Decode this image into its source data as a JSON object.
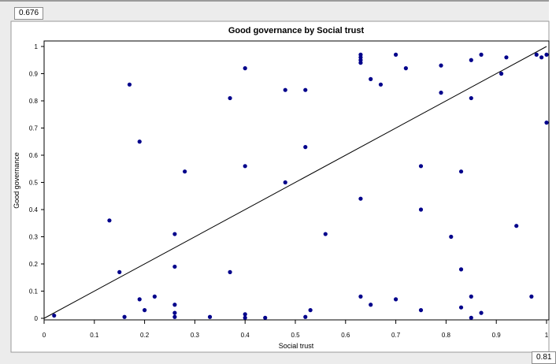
{
  "corner_values": {
    "top_left": "0.676",
    "bottom_right": "0.81"
  },
  "chart_data": {
    "type": "scatter",
    "title": "Good governance by Social trust",
    "xlabel": "Social trust",
    "ylabel": "Good governance",
    "xlim": [
      0,
      1
    ],
    "ylim": [
      0,
      1
    ],
    "x_ticks": [
      "0",
      "0.1",
      "0.2",
      "0.3",
      "0.4",
      "0.5",
      "0.6",
      "0.7",
      "0.8",
      "0.9",
      "1"
    ],
    "y_ticks": [
      "0",
      "0.1",
      "0.2",
      "0.3",
      "0.4",
      "0.5",
      "0.6",
      "0.7",
      "0.8",
      "0.9",
      "1"
    ],
    "grid": false,
    "series": [
      {
        "points": [
          [
            0.02,
            0.01
          ],
          [
            0.13,
            0.36
          ],
          [
            0.15,
            0.17
          ],
          [
            0.16,
            0.005
          ],
          [
            0.17,
            0.86
          ],
          [
            0.19,
            0.65
          ],
          [
            0.19,
            0.07
          ],
          [
            0.2,
            0.03
          ],
          [
            0.22,
            0.08
          ],
          [
            0.26,
            0.31
          ],
          [
            0.26,
            0.19
          ],
          [
            0.26,
            0.05
          ],
          [
            0.26,
            0.02
          ],
          [
            0.26,
            0.005
          ],
          [
            0.28,
            0.54
          ],
          [
            0.33,
            0.005
          ],
          [
            0.37,
            0.81
          ],
          [
            0.37,
            0.17
          ],
          [
            0.4,
            0.92
          ],
          [
            0.4,
            0.56
          ],
          [
            0.4,
            0.015
          ],
          [
            0.4,
            0.002
          ],
          [
            0.44,
            0.002
          ],
          [
            0.48,
            0.84
          ],
          [
            0.48,
            0.5
          ],
          [
            0.52,
            0.84
          ],
          [
            0.52,
            0.63
          ],
          [
            0.52,
            0.005
          ],
          [
            0.53,
            0.03
          ],
          [
            0.56,
            0.31
          ],
          [
            0.63,
            0.97
          ],
          [
            0.63,
            0.96
          ],
          [
            0.63,
            0.95
          ],
          [
            0.63,
            0.94
          ],
          [
            0.63,
            0.44
          ],
          [
            0.63,
            0.08
          ],
          [
            0.65,
            0.88
          ],
          [
            0.65,
            0.05
          ],
          [
            0.67,
            0.86
          ],
          [
            0.7,
            0.97
          ],
          [
            0.7,
            0.07
          ],
          [
            0.72,
            0.92
          ],
          [
            0.75,
            0.56
          ],
          [
            0.75,
            0.4
          ],
          [
            0.75,
            0.03
          ],
          [
            0.79,
            0.93
          ],
          [
            0.79,
            0.83
          ],
          [
            0.81,
            0.3
          ],
          [
            0.83,
            0.54
          ],
          [
            0.83,
            0.18
          ],
          [
            0.83,
            0.04
          ],
          [
            0.85,
            0.95
          ],
          [
            0.85,
            0.81
          ],
          [
            0.85,
            0.08
          ],
          [
            0.85,
            0.002
          ],
          [
            0.87,
            0.97
          ],
          [
            0.87,
            0.02
          ],
          [
            0.91,
            0.9
          ],
          [
            0.92,
            0.96
          ],
          [
            0.94,
            0.34
          ],
          [
            0.97,
            0.08
          ],
          [
            0.98,
            0.97
          ],
          [
            0.99,
            0.96
          ],
          [
            1.0,
            0.97
          ],
          [
            1.0,
            0.72
          ]
        ],
        "color": "#00008b"
      }
    ],
    "fit_line": {
      "from": [
        0,
        0
      ],
      "to": [
        1,
        1
      ],
      "color": "#000000"
    }
  }
}
